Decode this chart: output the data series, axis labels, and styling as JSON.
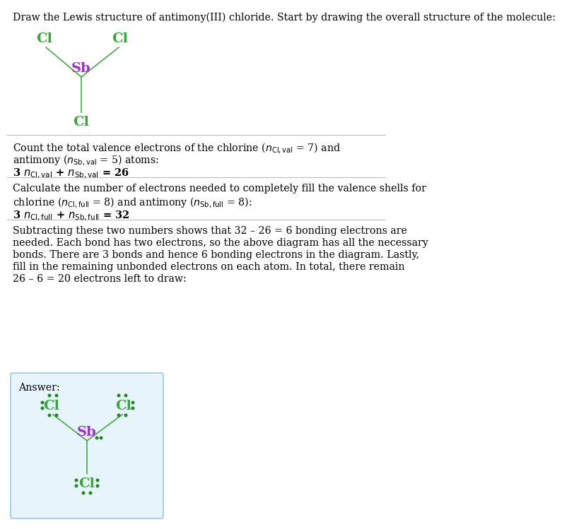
{
  "cl_color": "#33aa33",
  "sb_color": "#9933cc",
  "bond_color": "#44aa44",
  "dot_color": "#228822",
  "answer_bg_color": "#e8f4fb",
  "answer_border_color": "#99ccdd",
  "background_color": "#ffffff",
  "text_color": "#000000",
  "divider_color": "#bbbbbb",
  "title": "Draw the Lewis structure of antimony(III) chloride. Start by drawing the overall structure of the molecule:",
  "s1_line1": "Count the total valence electrons of the chlorine ($n_{\\mathrm{Cl,val}}$ = 7) and",
  "s1_line2": "antimony ($n_{\\mathrm{Sb,val}}$ = 5) atoms:",
  "s1_formula": "3 $n_{\\mathrm{Cl,val}}$ + $n_{\\mathrm{Sb,val}}$ = 26",
  "s2_line1": "Calculate the number of electrons needed to completely fill the valence shells for",
  "s2_line2": "chlorine ($n_{\\mathrm{Cl,full}}$ = 8) and antimony ($n_{\\mathrm{Sb,full}}$ = 8):",
  "s2_formula": "3 $n_{\\mathrm{Cl,full}}$ + $n_{\\mathrm{Sb,full}}$ = 32",
  "s3_text": "Subtracting these two numbers shows that 32 – 26 = 6 bonding electrons are needed. Each bond has two electrons, so the above diagram has all the necessary bonds. There are 3 bonds and hence 6 bonding electrons in the diagram. Lastly, fill in the remaining unbonded electrons on each atom. In total, there remain 26 – 6 = 20 electrons left to draw:",
  "answer_label": "Answer:"
}
